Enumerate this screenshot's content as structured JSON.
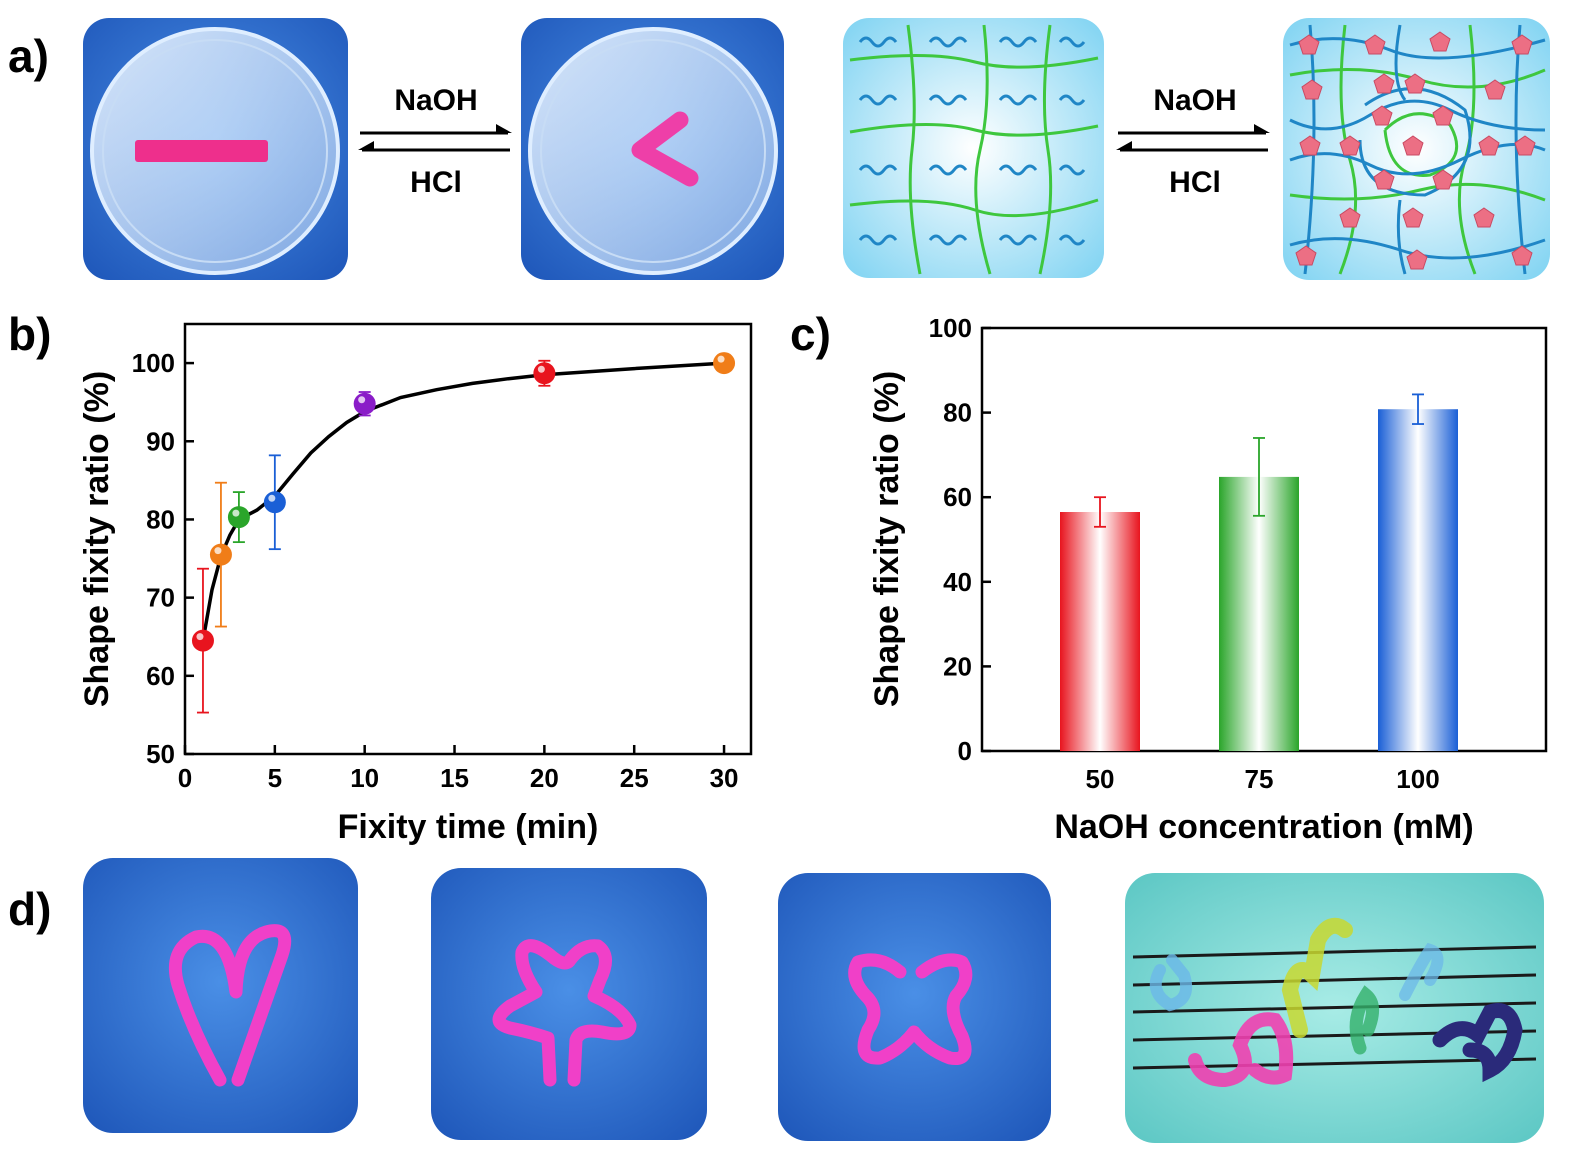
{
  "panel_labels": [
    "a)",
    "b)",
    "c)",
    "d)"
  ],
  "reagents": {
    "forward": "NaOH",
    "reverse": "HCl"
  },
  "colors": {
    "red": "#e8141e",
    "orange": "#f07d18",
    "green": "#2aa52a",
    "blue": "#1a5fd6",
    "purple": "#8a1cc8",
    "photo_blue": "#2f6fd0",
    "gel_pink": "#ee33b6",
    "network_green": "#3ec73e",
    "network_blue": "#1f86c6",
    "pentagon": "#ec6f84"
  },
  "chart_data": [
    {
      "id": "b",
      "type": "scatter",
      "title": "",
      "xlabel": "Fixity time (min)",
      "ylabel": "Shape fixity ratio (%)",
      "xlim": [
        0,
        31.5
      ],
      "ylim": [
        50,
        105
      ],
      "xticks": [
        0,
        5,
        10,
        15,
        20,
        25,
        30
      ],
      "yticks": [
        50,
        60,
        70,
        80,
        90,
        100
      ],
      "points": [
        {
          "x": 1,
          "y": 64.5,
          "err": 9.2,
          "color": "red"
        },
        {
          "x": 2,
          "y": 75.5,
          "err": 9.2,
          "color": "orange"
        },
        {
          "x": 3,
          "y": 80.3,
          "err": 3.2,
          "color": "green"
        },
        {
          "x": 5,
          "y": 82.2,
          "err": 6.0,
          "color": "blue"
        },
        {
          "x": 10,
          "y": 94.8,
          "err": 1.5,
          "color": "purple"
        },
        {
          "x": 20,
          "y": 98.7,
          "err": 1.6,
          "color": "red"
        },
        {
          "x": 30,
          "y": 100.0,
          "err": 0.5,
          "color": "orange"
        }
      ],
      "fit_curve": [
        [
          1,
          64.5
        ],
        [
          1.5,
          71
        ],
        [
          2,
          75.3
        ],
        [
          2.5,
          78
        ],
        [
          3,
          80
        ],
        [
          4,
          81.2
        ],
        [
          5,
          83
        ],
        [
          6,
          85.8
        ],
        [
          7,
          88.5
        ],
        [
          8,
          90.6
        ],
        [
          9,
          92.4
        ],
        [
          10,
          93.8
        ],
        [
          12,
          95.6
        ],
        [
          14,
          96.6
        ],
        [
          16,
          97.4
        ],
        [
          18,
          98.0
        ],
        [
          20,
          98.5
        ],
        [
          25,
          99.3
        ],
        [
          30,
          100
        ]
      ]
    },
    {
      "id": "c",
      "type": "bar",
      "title": "",
      "xlabel": "NaOH concentration (mM)",
      "ylabel": "Shape fixity ratio (%)",
      "ylim": [
        0,
        100
      ],
      "yticks": [
        0,
        20,
        40,
        60,
        80,
        100
      ],
      "categories": [
        "50",
        "75",
        "100"
      ],
      "values": [
        56.5,
        64.8,
        80.8
      ],
      "errors": [
        3.5,
        9.2,
        3.5
      ],
      "colors": [
        "red",
        "green",
        "blue"
      ]
    }
  ]
}
